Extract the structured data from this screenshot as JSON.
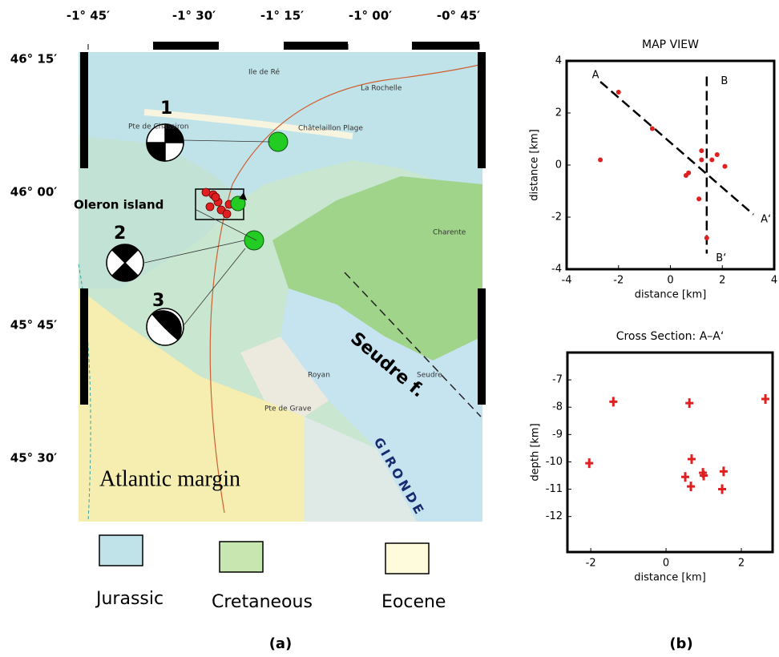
{
  "map": {
    "lon_ticks": [
      "-1° 45′",
      "-1° 30′",
      "-1° 15′",
      "-1° 00′",
      "-0° 45′"
    ],
    "lat_ticks": [
      "46° 15′",
      "46° 00′",
      "45° 45′",
      "45° 30′"
    ],
    "island": "Oleron island",
    "fault": "Seudre f.",
    "margin": "Atlantic margin",
    "estuary": "GIRONDE",
    "events": [
      "1",
      "2",
      "3"
    ],
    "places": [
      "Ile de Ré",
      "La Rochelle",
      "Pte de Chassiron",
      "Châtelaillon Plage",
      "Charente",
      "Royan",
      "Pte de Grave",
      "Seudre"
    ]
  },
  "legend": [
    "Jurassic",
    "Cretaneous",
    "Eocene"
  ],
  "panel_labels": [
    "(a)",
    "(b)"
  ],
  "chart_data": [
    {
      "type": "scatter",
      "title": "MAP VIEW",
      "x_label": "distance [km]",
      "y_label": "distance [km]",
      "marker": "circle",
      "color": "#e02020",
      "x": [
        -2.0,
        -0.7,
        -2.7,
        1.2,
        1.8,
        1.2,
        1.6,
        2.1,
        0.7,
        0.6,
        1.1,
        1.4
      ],
      "y": [
        2.8,
        1.4,
        0.2,
        0.55,
        0.4,
        0.2,
        0.2,
        -0.05,
        -0.3,
        -0.4,
        -1.3,
        -2.8
      ],
      "profiles": [
        {
          "start": "A",
          "end": "A‘",
          "x": [
            -2.7,
            3.2
          ],
          "y": [
            3.2,
            -1.9
          ]
        },
        {
          "start": "B",
          "end": "B‘",
          "x": [
            1.4,
            1.4
          ],
          "y": [
            3.4,
            -3.4
          ]
        }
      ],
      "xlim": [
        -4,
        4
      ],
      "ylim": [
        -4,
        4
      ],
      "xticks": [
        -4,
        -2,
        0,
        2,
        4
      ],
      "yticks": [
        -4,
        -2,
        0,
        2,
        4
      ]
    },
    {
      "type": "scatter",
      "title": "Cross Section: A–A‘",
      "x_label": "distance [km]",
      "y_label": "depth [km]",
      "marker": "plus",
      "color": "#e02020",
      "x": [
        -1.4,
        0.62,
        2.64,
        -2.04,
        0.68,
        0.51,
        0.66,
        0.98,
        1.0,
        1.53,
        1.49
      ],
      "y": [
        -7.8,
        -7.85,
        -7.7,
        -10.05,
        -9.9,
        -10.55,
        -10.9,
        -10.4,
        -10.5,
        -10.35,
        -11.0
      ],
      "xlim": [
        -2.62,
        2.83
      ],
      "ylim": [
        -13.3,
        -6
      ],
      "xticks": [
        -2,
        0,
        2
      ],
      "yticks": [
        -12,
        -11,
        -10,
        -9,
        -8,
        -7
      ]
    }
  ]
}
